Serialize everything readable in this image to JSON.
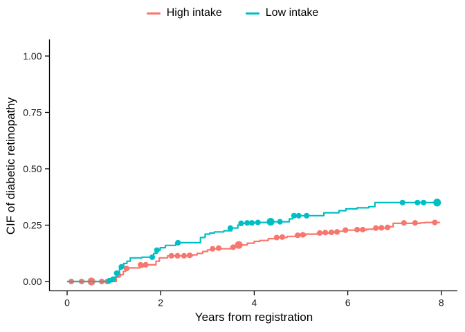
{
  "chart_data": {
    "type": "line",
    "subtype": "step-cumulative-incidence",
    "title": "",
    "xlabel": "Years from registration",
    "ylabel": "CIF of diabetic retinopathy",
    "xlim": [
      0,
      8
    ],
    "ylim": [
      0,
      1
    ],
    "x_ticks": [
      0,
      2,
      4,
      6,
      8
    ],
    "y_ticks": [
      0.0,
      0.25,
      0.5,
      0.75,
      1.0
    ],
    "y_tick_labels": [
      "0.00",
      "0.25",
      "0.50",
      "0.75",
      "1.00"
    ],
    "x_tick_labels": [
      "0",
      "2",
      "4",
      "6",
      "8"
    ],
    "grid": false,
    "legend_position": "top-center",
    "axis_color": "#000000",
    "series": [
      {
        "name": "High intake",
        "color": "#F8766D",
        "steps": [
          [
            0,
            0
          ],
          [
            1.0,
            0
          ],
          [
            1.05,
            0.02
          ],
          [
            1.1,
            0.03
          ],
          [
            1.2,
            0.045
          ],
          [
            1.25,
            0.055
          ],
          [
            1.32,
            0.06
          ],
          [
            1.55,
            0.064
          ],
          [
            1.62,
            0.074
          ],
          [
            1.9,
            0.09
          ],
          [
            1.97,
            0.105
          ],
          [
            2.15,
            0.114
          ],
          [
            2.68,
            0.118
          ],
          [
            2.78,
            0.125
          ],
          [
            2.9,
            0.133
          ],
          [
            3.0,
            0.14
          ],
          [
            3.1,
            0.145
          ],
          [
            3.5,
            0.152
          ],
          [
            3.68,
            0.162
          ],
          [
            3.85,
            0.17
          ],
          [
            4.0,
            0.178
          ],
          [
            4.12,
            0.182
          ],
          [
            4.3,
            0.19
          ],
          [
            4.45,
            0.195
          ],
          [
            4.7,
            0.2
          ],
          [
            4.88,
            0.205
          ],
          [
            5.1,
            0.21
          ],
          [
            5.35,
            0.215
          ],
          [
            5.6,
            0.218
          ],
          [
            5.78,
            0.223
          ],
          [
            5.92,
            0.228
          ],
          [
            6.4,
            0.232
          ],
          [
            6.57,
            0.237
          ],
          [
            6.88,
            0.243
          ],
          [
            6.97,
            0.258
          ],
          [
            7.55,
            0.26
          ],
          [
            7.65,
            0.262
          ],
          [
            7.96,
            0.264
          ]
        ],
        "censor_marks": [
          [
            0.09,
            0,
            0
          ],
          [
            0.31,
            0,
            0
          ],
          [
            0.52,
            0,
            1
          ],
          [
            0.74,
            0,
            0
          ],
          [
            0.86,
            0,
            0
          ],
          [
            1.1,
            0.028,
            0
          ],
          [
            1.27,
            0.058,
            0
          ],
          [
            1.57,
            0.074,
            0
          ],
          [
            1.68,
            0.074,
            0
          ],
          [
            2.23,
            0.114,
            0
          ],
          [
            2.36,
            0.114,
            0
          ],
          [
            2.5,
            0.114,
            0
          ],
          [
            2.62,
            0.116,
            0
          ],
          [
            3.11,
            0.145,
            0
          ],
          [
            3.24,
            0.148,
            0
          ],
          [
            3.55,
            0.152,
            0
          ],
          [
            3.67,
            0.162,
            1
          ],
          [
            4.48,
            0.195,
            0
          ],
          [
            4.6,
            0.197,
            0
          ],
          [
            4.93,
            0.205,
            0
          ],
          [
            5.04,
            0.207,
            0
          ],
          [
            5.4,
            0.215,
            0
          ],
          [
            5.52,
            0.217,
            0
          ],
          [
            5.65,
            0.218,
            0
          ],
          [
            5.77,
            0.22,
            0
          ],
          [
            5.95,
            0.228,
            0
          ],
          [
            6.2,
            0.23,
            0
          ],
          [
            6.32,
            0.23,
            0
          ],
          [
            6.6,
            0.237,
            0
          ],
          [
            6.72,
            0.238,
            0
          ],
          [
            6.85,
            0.24,
            0
          ],
          [
            7.2,
            0.26,
            0
          ],
          [
            7.44,
            0.26,
            0
          ],
          [
            7.86,
            0.262,
            0
          ]
        ]
      },
      {
        "name": "Low intake",
        "color": "#00BFC4",
        "steps": [
          [
            0,
            0
          ],
          [
            0.95,
            0
          ],
          [
            0.98,
            0.01
          ],
          [
            1.02,
            0.02
          ],
          [
            1.06,
            0.037
          ],
          [
            1.12,
            0.055
          ],
          [
            1.16,
            0.065
          ],
          [
            1.21,
            0.08
          ],
          [
            1.28,
            0.09
          ],
          [
            1.35,
            0.105
          ],
          [
            1.6,
            0.108
          ],
          [
            1.85,
            0.125
          ],
          [
            1.92,
            0.139
          ],
          [
            1.99,
            0.15
          ],
          [
            2.1,
            0.16
          ],
          [
            2.32,
            0.168
          ],
          [
            2.4,
            0.172
          ],
          [
            2.85,
            0.195
          ],
          [
            2.95,
            0.21
          ],
          [
            3.05,
            0.215
          ],
          [
            3.15,
            0.22
          ],
          [
            3.35,
            0.225
          ],
          [
            3.52,
            0.237
          ],
          [
            3.65,
            0.25
          ],
          [
            3.75,
            0.258
          ],
          [
            4.0,
            0.262
          ],
          [
            4.3,
            0.265
          ],
          [
            4.75,
            0.278
          ],
          [
            4.82,
            0.292
          ],
          [
            5.49,
            0.305
          ],
          [
            5.81,
            0.314
          ],
          [
            5.96,
            0.322
          ],
          [
            6.2,
            0.327
          ],
          [
            6.45,
            0.332
          ],
          [
            6.58,
            0.35
          ],
          [
            7.91,
            0.35
          ]
        ],
        "censor_marks": [
          [
            0.9,
            0.003,
            0
          ],
          [
            0.98,
            0.01,
            0
          ],
          [
            1.06,
            0.037,
            0
          ],
          [
            1.16,
            0.065,
            0
          ],
          [
            1.82,
            0.108,
            0
          ],
          [
            1.92,
            0.139,
            0
          ],
          [
            2.37,
            0.172,
            0
          ],
          [
            3.49,
            0.237,
            0
          ],
          [
            3.72,
            0.258,
            0
          ],
          [
            3.85,
            0.26,
            0
          ],
          [
            3.95,
            0.26,
            0
          ],
          [
            4.08,
            0.262,
            0
          ],
          [
            4.35,
            0.265,
            1
          ],
          [
            4.55,
            0.265,
            0
          ],
          [
            4.85,
            0.292,
            0
          ],
          [
            4.95,
            0.292,
            0
          ],
          [
            5.12,
            0.292,
            0
          ],
          [
            7.17,
            0.35,
            0
          ],
          [
            7.49,
            0.35,
            0
          ],
          [
            7.62,
            0.35,
            0
          ],
          [
            7.91,
            0.35,
            1
          ]
        ]
      }
    ]
  },
  "legend": {
    "high_label": "High intake",
    "low_label": "Low intake"
  },
  "axes": {
    "x_title": "Years from registration",
    "y_title": "CIF of diabetic retinopathy"
  }
}
